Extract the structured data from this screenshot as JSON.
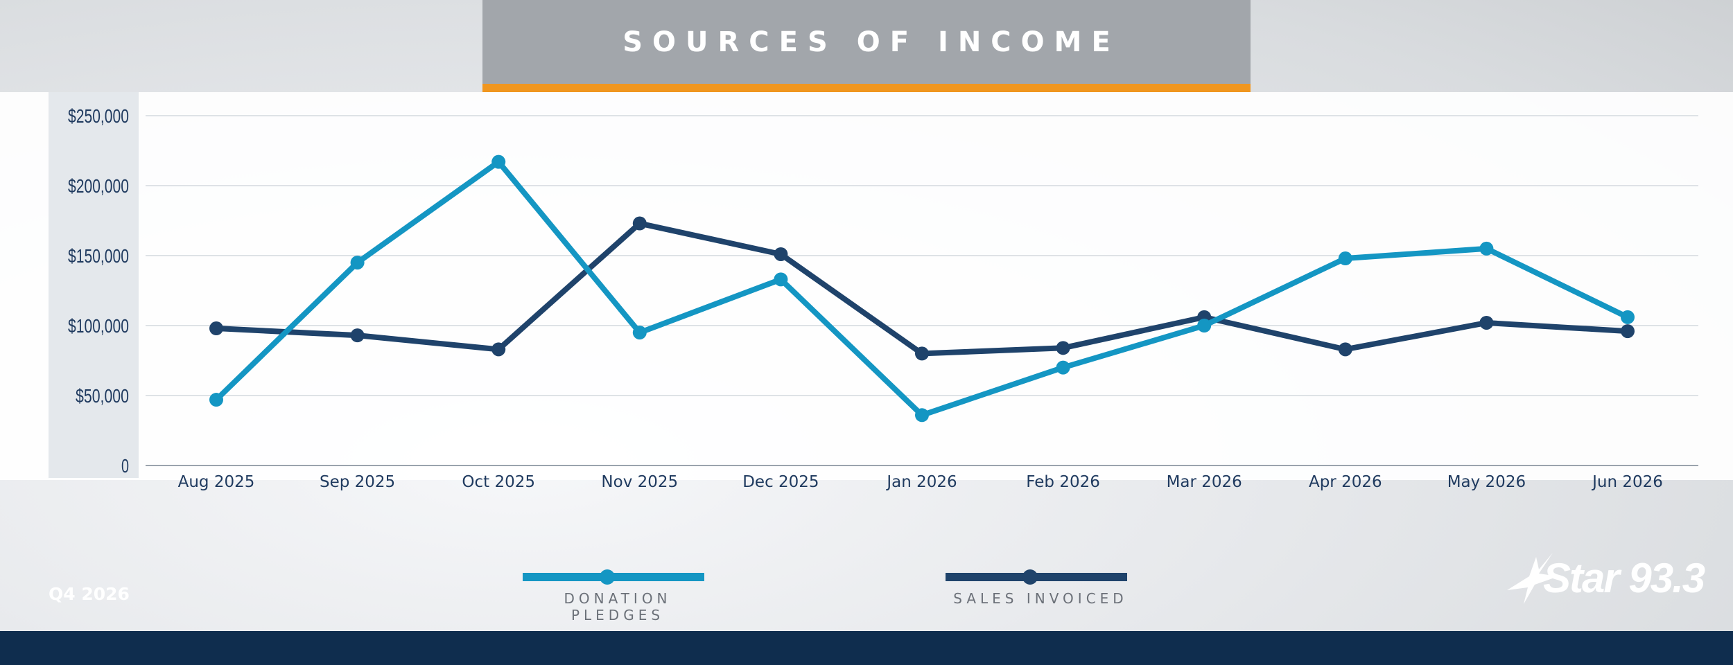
{
  "header": {
    "title": "SOURCES OF INCOME"
  },
  "footer": {
    "quarter": "Q4 2026",
    "logo_text": "Star 93.3"
  },
  "colors": {
    "donation": "#1496c3",
    "sales": "#1f436b",
    "accent": "#f0961f",
    "band": "#0f2d4e"
  },
  "chart_data": {
    "type": "line",
    "title": "SOURCES OF INCOME",
    "xlabel": "",
    "ylabel": "",
    "categories": [
      "Aug 2025",
      "Sep 2025",
      "Oct 2025",
      "Nov 2025",
      "Dec 2025",
      "Jan 2026",
      "Feb 2026",
      "Mar 2026",
      "Apr 2026",
      "May 2026",
      "Jun 2026"
    ],
    "ylim": [
      0,
      250000
    ],
    "yticks": [
      0,
      50000,
      100000,
      150000,
      200000,
      250000
    ],
    "ytick_labels": [
      "0",
      "$50,000",
      "$100,000",
      "$150,000",
      "$200,000",
      "$250,000"
    ],
    "grid": true,
    "legend_position": "bottom",
    "series": [
      {
        "name": "DONATION PLEDGES",
        "color": "#1496c3",
        "values": [
          47000,
          145000,
          217000,
          95000,
          133000,
          36000,
          70000,
          100000,
          148000,
          155000,
          106000
        ]
      },
      {
        "name": "SALES INVOICED",
        "color": "#1f436b",
        "values": [
          98000,
          93000,
          83000,
          173000,
          151000,
          80000,
          84000,
          106000,
          83000,
          102000,
          96000
        ]
      }
    ]
  }
}
